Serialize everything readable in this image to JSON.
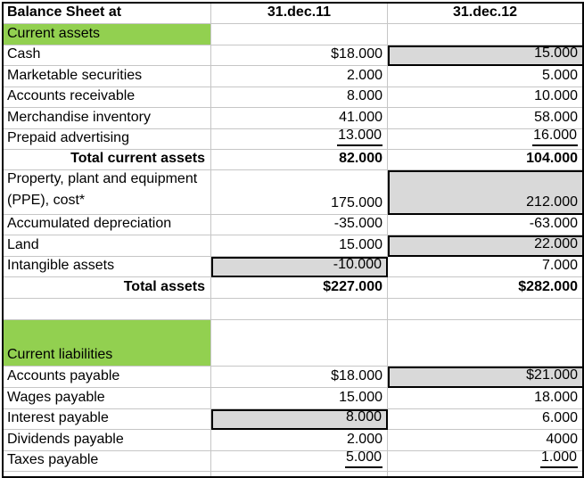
{
  "colors": {
    "section_green": "#92D050",
    "highlight_gray": "#D9D9D9",
    "gridline_gray": "#C6C6C6",
    "table_border": "#000000"
  },
  "header": {
    "title": "Balance Sheet at",
    "col_dec11": "31.dec.11",
    "col_dec12": "31.dec.12"
  },
  "rows": [
    {
      "label": "Current assets"
    },
    {
      "label": "Cash",
      "v1": "$18.000",
      "v2": "15.000"
    },
    {
      "label": "Marketable securities",
      "v1": "2.000",
      "v2": "5.000"
    },
    {
      "label": "Accounts receivable",
      "v1": "8.000",
      "v2": "10.000"
    },
    {
      "label": "Merchandise inventory",
      "v1": "41.000",
      "v2": "58.000"
    },
    {
      "label": "Prepaid advertising",
      "v1": "13.000",
      "v2": "16.000"
    },
    {
      "label": "Total current assets",
      "v1": "82.000",
      "v2": "104.000"
    },
    {
      "label": "Property, plant and equipment (PPE), cost*",
      "v1": "175.000",
      "v2": "212.000"
    },
    {
      "label": "Accumulated depreciation",
      "v1": "-35.000",
      "v2": "-63.000"
    },
    {
      "label": "Land",
      "v1": "15.000",
      "v2": "22.000"
    },
    {
      "label": "Intangible assets",
      "v1": "-10.000",
      "v2": "7.000"
    },
    {
      "label": "Total assets",
      "v1": "$227.000",
      "v2": "$282.000"
    },
    {
      "label": ""
    },
    {
      "label": "Current liabilities"
    },
    {
      "label": "Accounts payable",
      "v1": "$18.000",
      "v2": "$21.000"
    },
    {
      "label": "Wages payable",
      "v1": "15.000",
      "v2": "18.000"
    },
    {
      "label": "Interest payable",
      "v1": "8.000",
      "v2": "6.000"
    },
    {
      "label": "Dividends payable",
      "v1": "2.000",
      "v2": "4000"
    },
    {
      "label": "Taxes payable",
      "v1": "5.000",
      "v2": "1.000"
    }
  ]
}
